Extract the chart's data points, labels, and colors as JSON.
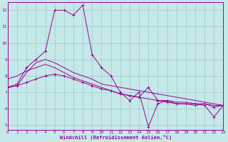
{
  "xlabel": "Windchill (Refroidissement éolien,°C)",
  "xlim": [
    0,
    23
  ],
  "ylim": [
    4.7,
    12.5
  ],
  "yticks": [
    5,
    6,
    7,
    8,
    9,
    10,
    11,
    12
  ],
  "xticks": [
    0,
    1,
    2,
    3,
    4,
    5,
    6,
    7,
    8,
    9,
    10,
    11,
    12,
    13,
    14,
    15,
    16,
    17,
    18,
    19,
    20,
    21,
    22,
    23
  ],
  "bg_color": "#c5e8e8",
  "grid_color": "#a0c8c8",
  "line_color": "#990099",
  "series": [
    {
      "x": [
        0,
        1,
        2,
        3,
        4,
        5,
        6,
        7,
        8,
        9,
        10,
        11,
        12,
        13,
        14,
        15,
        16,
        17,
        18,
        19,
        20,
        21,
        22,
        23
      ],
      "y": [
        7.3,
        7.5,
        8.5,
        9.0,
        9.5,
        12.0,
        12.0,
        11.7,
        12.3,
        9.3,
        8.5,
        8.0,
        7.0,
        6.5,
        7.0,
        4.9,
        6.3,
        6.5,
        6.3,
        6.3,
        6.3,
        6.2,
        5.5,
        6.2
      ],
      "marker": true
    },
    {
      "x": [
        0,
        1,
        2,
        3,
        4,
        5,
        6,
        7,
        8,
        9,
        10,
        11,
        12,
        13,
        14,
        15,
        16,
        17,
        18,
        19,
        20,
        21,
        22,
        23
      ],
      "y": [
        7.3,
        7.4,
        8.2,
        8.8,
        9.0,
        8.8,
        8.5,
        8.2,
        8.0,
        7.8,
        7.5,
        7.4,
        7.3,
        7.2,
        7.1,
        7.0,
        6.9,
        6.8,
        6.7,
        6.6,
        6.5,
        6.4,
        6.3,
        6.2
      ],
      "marker": false
    },
    {
      "x": [
        0,
        1,
        2,
        3,
        4,
        5,
        6,
        7,
        8,
        9,
        10,
        11,
        12,
        13,
        14,
        15,
        16,
        17,
        18,
        19,
        20,
        21,
        22,
        23
      ],
      "y": [
        7.8,
        8.0,
        8.3,
        8.5,
        8.7,
        8.5,
        8.2,
        7.9,
        7.7,
        7.5,
        7.3,
        7.1,
        6.9,
        6.8,
        6.7,
        6.6,
        6.5,
        6.5,
        6.4,
        6.4,
        6.3,
        6.3,
        6.2,
        6.2
      ],
      "marker": false
    },
    {
      "x": [
        0,
        1,
        2,
        3,
        4,
        5,
        6,
        7,
        8,
        9,
        10,
        11,
        12,
        13,
        14,
        15,
        16,
        17,
        18,
        19,
        20,
        21,
        22,
        23
      ],
      "y": [
        7.3,
        7.4,
        7.6,
        7.8,
        8.0,
        8.1,
        8.0,
        7.8,
        7.6,
        7.4,
        7.2,
        7.1,
        6.9,
        6.8,
        6.7,
        7.3,
        6.5,
        6.4,
        6.3,
        6.3,
        6.2,
        6.3,
        6.1,
        6.2
      ],
      "marker": true
    }
  ]
}
